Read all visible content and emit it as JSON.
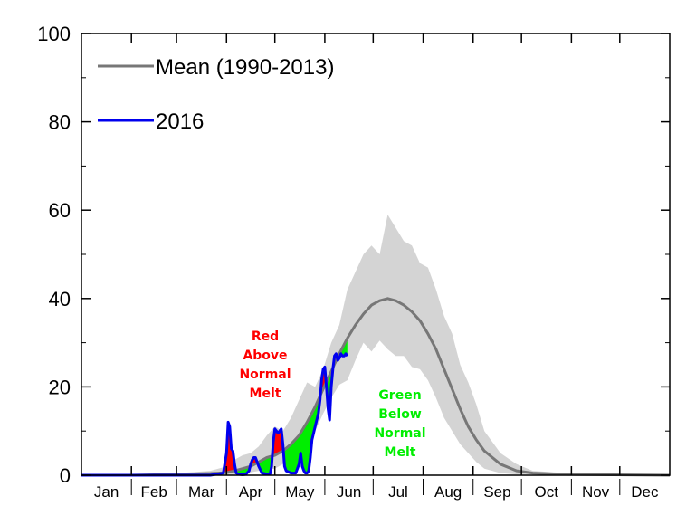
{
  "chart_data": {
    "type": "area",
    "xlabel": "",
    "ylabel": "",
    "ylim": [
      0,
      100
    ],
    "xlim": [
      0,
      365
    ],
    "y_ticks": [
      "0",
      "20",
      "40",
      "60",
      "80",
      "100"
    ],
    "months": [
      "Jan",
      "Feb",
      "Mar",
      "Apr",
      "May",
      "Jun",
      "Jul",
      "Aug",
      "Sep",
      "Oct",
      "Nov",
      "Dec"
    ],
    "legend": {
      "position": "top-left",
      "entries": [
        "Mean (1990-2013)",
        "2016"
      ]
    },
    "colors": {
      "mean": "#777777",
      "band": "#d4d4d4",
      "current": "#0000ee",
      "above": "#ff0000",
      "below": "#00ee00"
    },
    "annotations": [
      {
        "name": "above-normal-label",
        "lines": [
          "Red",
          "Above",
          "Normal",
          "Melt"
        ],
        "color": "#ff0000"
      },
      {
        "name": "below-normal-label",
        "lines": [
          "Green",
          "Below",
          "Normal",
          "Melt"
        ],
        "color": "#00ee00"
      }
    ],
    "series": [
      {
        "name": "Mean (1990-2013)",
        "x": [
          0,
          30,
          60,
          80,
          90,
          95,
          100,
          105,
          110,
          115,
          120,
          125,
          130,
          135,
          140,
          145,
          150,
          155,
          160,
          165,
          170,
          175,
          180,
          185,
          190,
          195,
          200,
          205,
          210,
          215,
          220,
          225,
          230,
          235,
          240,
          245,
          250,
          255,
          260,
          270,
          280,
          300,
          330,
          365
        ],
        "y": [
          0,
          0,
          0.2,
          0.4,
          0.6,
          1.0,
          1.5,
          2.0,
          3.0,
          4.0,
          4.5,
          5.5,
          7.0,
          9.0,
          12.0,
          15.5,
          19.5,
          23.5,
          27.5,
          31.0,
          34.0,
          36.5,
          38.5,
          39.5,
          40.0,
          39.5,
          38.5,
          37.0,
          35.0,
          32.0,
          28.5,
          24.0,
          19.5,
          15.0,
          11.0,
          8.0,
          5.5,
          4.0,
          2.5,
          1.0,
          0.5,
          0.2,
          0.1,
          0
        ]
      },
      {
        "name": "band_upper",
        "x": [
          0,
          60,
          80,
          90,
          95,
          100,
          105,
          110,
          115,
          120,
          125,
          130,
          135,
          140,
          145,
          150,
          155,
          160,
          165,
          170,
          175,
          180,
          185,
          190,
          195,
          200,
          205,
          210,
          215,
          220,
          225,
          230,
          235,
          240,
          245,
          250,
          255,
          260,
          270,
          280,
          300,
          330,
          365
        ],
        "y": [
          0,
          0.5,
          1.0,
          2.0,
          3.5,
          4.5,
          5.0,
          6.5,
          9.0,
          11.0,
          10.0,
          13.0,
          17.0,
          21.0,
          20.0,
          24.0,
          30.0,
          34.0,
          42.0,
          46.0,
          50.0,
          52.0,
          50.0,
          59.0,
          56.0,
          53.0,
          52.0,
          48.0,
          47.0,
          42.0,
          36.0,
          32.0,
          25.0,
          21.0,
          16.0,
          10.0,
          7.5,
          5.0,
          2.5,
          1.0,
          0.5,
          0.3,
          0
        ]
      },
      {
        "name": "band_lower",
        "x": [
          0,
          90,
          100,
          110,
          120,
          125,
          130,
          135,
          140,
          145,
          150,
          155,
          160,
          165,
          170,
          175,
          180,
          185,
          190,
          195,
          200,
          205,
          210,
          215,
          220,
          225,
          230,
          235,
          240,
          245,
          250,
          260,
          270,
          365
        ],
        "y": [
          0,
          0,
          0.3,
          1.0,
          1.5,
          2.5,
          3.0,
          4.5,
          6.5,
          10.0,
          14.0,
          17.5,
          20.5,
          21.5,
          26.0,
          30.0,
          28.0,
          30.5,
          28.5,
          27.0,
          27.0,
          24.5,
          24.0,
          21.5,
          17.5,
          13.0,
          10.0,
          7.0,
          5.0,
          3.0,
          1.5,
          0.5,
          0.2,
          0
        ]
      },
      {
        "name": "2016",
        "x": [
          0,
          20,
          40,
          60,
          80,
          88,
          90,
          91,
          92,
          93,
          94,
          95,
          96,
          97,
          98,
          100,
          102,
          104,
          105,
          106,
          107,
          108,
          110,
          112,
          116,
          117,
          118,
          119,
          120,
          121,
          122,
          123,
          124,
          125,
          126,
          127,
          130,
          133,
          135,
          136,
          137,
          138,
          139,
          140,
          141,
          142,
          143,
          145,
          147,
          148,
          149,
          150,
          151,
          152,
          153,
          154,
          155,
          156,
          157,
          158,
          159,
          160,
          161,
          162,
          163,
          164,
          165
        ],
        "y": [
          0,
          0,
          0,
          0,
          0,
          0.5,
          5.0,
          12.0,
          11.0,
          6.0,
          5.5,
          2.5,
          0.5,
          0.3,
          0.2,
          0.1,
          0.2,
          1.0,
          2.5,
          3.5,
          4.0,
          4.0,
          2.0,
          0.5,
          0.2,
          0.3,
          2.0,
          7.5,
          10.5,
          10.0,
          9.5,
          10.0,
          10.5,
          7.0,
          2.0,
          1.0,
          0.5,
          0.5,
          2.5,
          5.0,
          2.0,
          1.0,
          0.5,
          0.5,
          1.0,
          4.0,
          8.0,
          11.0,
          14.0,
          17.0,
          21.5,
          24.0,
          24.5,
          20.0,
          15.0,
          12.5,
          20.0,
          24.0,
          27.0,
          27.5,
          26.0,
          26.5,
          27.5,
          27.0,
          27.0,
          27.5,
          27.0
        ]
      }
    ]
  }
}
